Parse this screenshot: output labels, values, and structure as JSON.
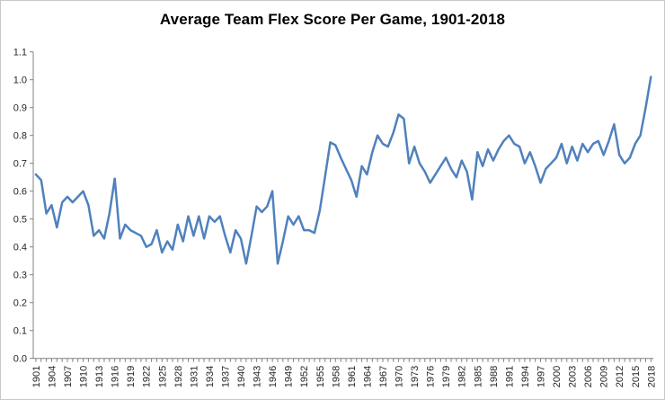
{
  "title": "Average Team Flex Score Per Game, 1901-2018",
  "colors": {
    "line": "#4F81BD",
    "axis": "#808080",
    "tick_label": "#262626",
    "background": "#FFFFFF",
    "chart_border": "#C9C9C9"
  },
  "chart_data": {
    "type": "line",
    "title": "Average Team Flex Score Per Game, 1901-2018",
    "xlabel": "",
    "ylabel": "",
    "ylim": [
      0.0,
      1.1
    ],
    "grid": false,
    "legend": "none",
    "y_tick_labels": [
      "0.0",
      "0.1",
      "0.2",
      "0.3",
      "0.4",
      "0.5",
      "0.6",
      "0.7",
      "0.8",
      "0.9",
      "1.0",
      "1.1"
    ],
    "x_tick_labels": [
      "1901",
      "1904",
      "1907",
      "1910",
      "1913",
      "1916",
      "1919",
      "1922",
      "1925",
      "1928",
      "1931",
      "1934",
      "1937",
      "1940",
      "1943",
      "1946",
      "1949",
      "1952",
      "1955",
      "1958",
      "1961",
      "1964",
      "1967",
      "1970",
      "1973",
      "1976",
      "1979",
      "1982",
      "1985",
      "1988",
      "1991",
      "1994",
      "1997",
      "2000",
      "2003",
      "2006",
      "2009",
      "2012",
      "2015",
      "2018"
    ],
    "x": [
      1901,
      1902,
      1903,
      1904,
      1905,
      1906,
      1907,
      1908,
      1909,
      1910,
      1911,
      1912,
      1913,
      1914,
      1915,
      1916,
      1917,
      1918,
      1919,
      1920,
      1921,
      1922,
      1923,
      1924,
      1925,
      1926,
      1927,
      1928,
      1929,
      1930,
      1931,
      1932,
      1933,
      1934,
      1935,
      1936,
      1937,
      1938,
      1939,
      1940,
      1941,
      1942,
      1943,
      1944,
      1945,
      1946,
      1947,
      1948,
      1949,
      1950,
      1951,
      1952,
      1953,
      1954,
      1955,
      1956,
      1957,
      1958,
      1959,
      1960,
      1961,
      1962,
      1963,
      1964,
      1965,
      1966,
      1967,
      1968,
      1969,
      1970,
      1971,
      1972,
      1973,
      1974,
      1975,
      1976,
      1977,
      1978,
      1979,
      1980,
      1981,
      1982,
      1983,
      1984,
      1985,
      1986,
      1987,
      1988,
      1989,
      1990,
      1991,
      1992,
      1993,
      1994,
      1995,
      1996,
      1997,
      1998,
      1999,
      2000,
      2001,
      2002,
      2003,
      2004,
      2005,
      2006,
      2007,
      2008,
      2009,
      2010,
      2011,
      2012,
      2013,
      2014,
      2015,
      2016,
      2017,
      2018
    ],
    "values": [
      0.66,
      0.64,
      0.52,
      0.55,
      0.47,
      0.56,
      0.58,
      0.56,
      0.58,
      0.6,
      0.55,
      0.44,
      0.46,
      0.43,
      0.52,
      0.645,
      0.43,
      0.48,
      0.46,
      0.45,
      0.44,
      0.4,
      0.41,
      0.46,
      0.38,
      0.42,
      0.39,
      0.48,
      0.42,
      0.51,
      0.44,
      0.51,
      0.43,
      0.51,
      0.49,
      0.51,
      0.44,
      0.38,
      0.46,
      0.43,
      0.34,
      0.44,
      0.545,
      0.525,
      0.545,
      0.6,
      0.34,
      0.42,
      0.51,
      0.48,
      0.51,
      0.46,
      0.46,
      0.45,
      0.53,
      0.65,
      0.775,
      0.765,
      0.72,
      0.68,
      0.64,
      0.58,
      0.69,
      0.66,
      0.74,
      0.8,
      0.77,
      0.76,
      0.81,
      0.875,
      0.86,
      0.7,
      0.76,
      0.7,
      0.67,
      0.63,
      0.66,
      0.69,
      0.72,
      0.68,
      0.65,
      0.71,
      0.67,
      0.57,
      0.74,
      0.69,
      0.75,
      0.71,
      0.75,
      0.78,
      0.8,
      0.77,
      0.76,
      0.7,
      0.74,
      0.69,
      0.63,
      0.68,
      0.7,
      0.72,
      0.77,
      0.7,
      0.76,
      0.71,
      0.77,
      0.74,
      0.77,
      0.78,
      0.73,
      0.78,
      0.84,
      0.73,
      0.7,
      0.72,
      0.77,
      0.8,
      0.9,
      1.01
    ]
  }
}
